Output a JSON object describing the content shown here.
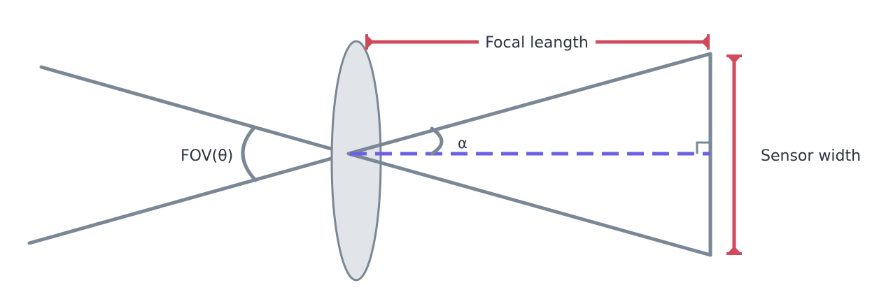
{
  "labels": {
    "fov": "FOV(θ)",
    "alpha": "α",
    "focal_length": "Focal leangth",
    "sensor_width": "Sensor width"
  },
  "colors": {
    "ray": "#7a8794",
    "lens_fill": "#e1e5e9",
    "lens_stroke": "#7a8794",
    "optical_axis": "#6b5fe6",
    "dimension": "#d14a5c",
    "text": "#2b3440"
  }
}
